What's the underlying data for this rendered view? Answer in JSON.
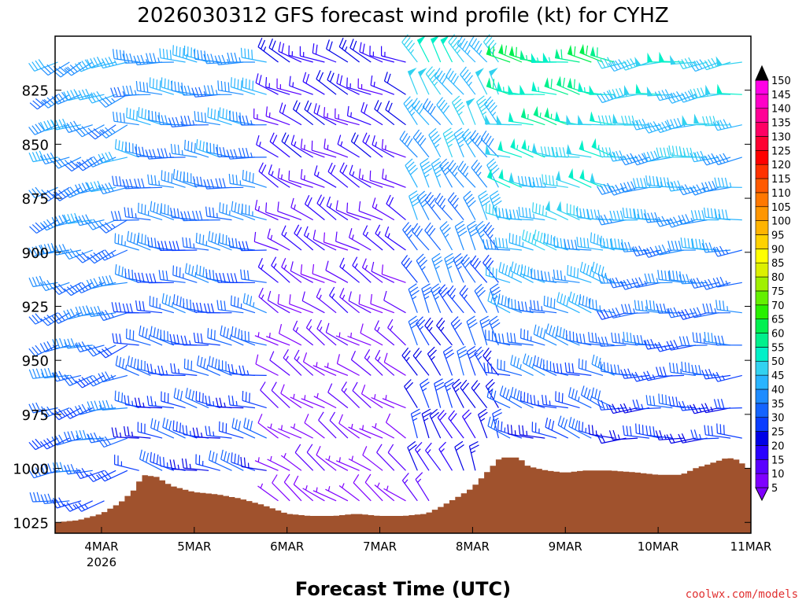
{
  "chart_data": {
    "type": "wind-barb-time-height",
    "title": "2026030312 GFS forecast wind profile (kt) for CYHZ",
    "xlabel": "Forecast Time (UTC)",
    "ylabel": "",
    "credit": "coolwx.com/models",
    "x_start_label_year": "2026",
    "x_ticks": [
      "4MAR",
      "5MAR",
      "6MAR",
      "7MAR",
      "8MAR",
      "9MAR",
      "10MAR",
      "11MAR"
    ],
    "x_range_days": [
      -0.5,
      7.0
    ],
    "y_ticks": [
      825,
      850,
      875,
      900,
      925,
      950,
      975,
      1000,
      1025
    ],
    "y_range_hpa": [
      800,
      1030
    ],
    "pressure_levels": [
      812,
      827,
      841,
      856,
      870,
      885,
      899,
      914,
      928,
      943,
      957,
      972,
      986,
      1001,
      1015
    ],
    "colorbar_levels": [
      5,
      10,
      15,
      20,
      25,
      30,
      35,
      40,
      45,
      50,
      55,
      60,
      65,
      70,
      75,
      80,
      85,
      90,
      95,
      100,
      105,
      110,
      115,
      120,
      125,
      130,
      135,
      140,
      145,
      150
    ],
    "colorbar_colors": [
      "#7f00ff",
      "#5a00ff",
      "#2a00ff",
      "#0000e6",
      "#0a3dff",
      "#1464ff",
      "#1e8cff",
      "#28b4ff",
      "#32d2f0",
      "#00f0c8",
      "#00f08c",
      "#00f050",
      "#28f000",
      "#64f000",
      "#a0f000",
      "#dcf000",
      "#ffff00",
      "#ffd200",
      "#ffb400",
      "#ff9600",
      "#ff7800",
      "#ff5a00",
      "#ff3200",
      "#ff0000",
      "#ff0032",
      "#ff0064",
      "#ff0096",
      "#ff00c8",
      "#ff00e6",
      "#ff00ff"
    ],
    "surface_pressure": [
      {
        "day": -0.5,
        "hpa": 1025
      },
      {
        "day": -0.25,
        "hpa": 1024
      },
      {
        "day": 0.0,
        "hpa": 1021
      },
      {
        "day": 0.2,
        "hpa": 1016
      },
      {
        "day": 0.35,
        "hpa": 1010
      },
      {
        "day": 0.45,
        "hpa": 1003
      },
      {
        "day": 0.6,
        "hpa": 1004
      },
      {
        "day": 0.75,
        "hpa": 1008
      },
      {
        "day": 1.0,
        "hpa": 1011
      },
      {
        "day": 1.25,
        "hpa": 1012
      },
      {
        "day": 1.5,
        "hpa": 1014
      },
      {
        "day": 1.75,
        "hpa": 1017
      },
      {
        "day": 2.0,
        "hpa": 1021
      },
      {
        "day": 2.25,
        "hpa": 1022
      },
      {
        "day": 2.5,
        "hpa": 1022
      },
      {
        "day": 2.75,
        "hpa": 1021
      },
      {
        "day": 3.0,
        "hpa": 1022
      },
      {
        "day": 3.25,
        "hpa": 1022
      },
      {
        "day": 3.5,
        "hpa": 1021
      },
      {
        "day": 3.65,
        "hpa": 1018
      },
      {
        "day": 3.85,
        "hpa": 1013
      },
      {
        "day": 4.0,
        "hpa": 1009
      },
      {
        "day": 4.15,
        "hpa": 1002
      },
      {
        "day": 4.3,
        "hpa": 995
      },
      {
        "day": 4.5,
        "hpa": 995
      },
      {
        "day": 4.6,
        "hpa": 999
      },
      {
        "day": 4.8,
        "hpa": 1001
      },
      {
        "day": 5.0,
        "hpa": 1002
      },
      {
        "day": 5.2,
        "hpa": 1001
      },
      {
        "day": 5.5,
        "hpa": 1001
      },
      {
        "day": 5.8,
        "hpa": 1002
      },
      {
        "day": 6.0,
        "hpa": 1003
      },
      {
        "day": 6.25,
        "hpa": 1003
      },
      {
        "day": 6.4,
        "hpa": 1000
      },
      {
        "day": 6.55,
        "hpa": 998
      },
      {
        "day": 6.75,
        "hpa": 995
      },
      {
        "day": 6.85,
        "hpa": 996
      },
      {
        "day": 6.95,
        "hpa": 999
      },
      {
        "day": 7.0,
        "hpa": 1001
      }
    ],
    "wind_regimes": [
      {
        "from_day": -0.5,
        "to_day": 0.4,
        "dir_deg": 250,
        "speed_kt_low": 30,
        "speed_kt_high": 40
      },
      {
        "from_day": 0.4,
        "to_day": 1.9,
        "dir_deg": 280,
        "speed_kt_low": 25,
        "speed_kt_high": 40
      },
      {
        "from_day": 1.9,
        "to_day": 3.4,
        "dir_deg": 300,
        "speed_kt_low": 5,
        "speed_kt_high": 20
      },
      {
        "from_day": 3.4,
        "to_day": 4.3,
        "dir_deg": 330,
        "speed_kt_low": 15,
        "speed_kt_high": 50
      },
      {
        "from_day": 4.3,
        "to_day": 5.6,
        "dir_deg": 285,
        "speed_kt_low": 20,
        "speed_kt_high": 60
      },
      {
        "from_day": 5.6,
        "to_day": 7.0,
        "dir_deg": 265,
        "speed_kt_low": 20,
        "speed_kt_high": 50
      }
    ],
    "grid": false,
    "legend": "colorbar-right"
  }
}
